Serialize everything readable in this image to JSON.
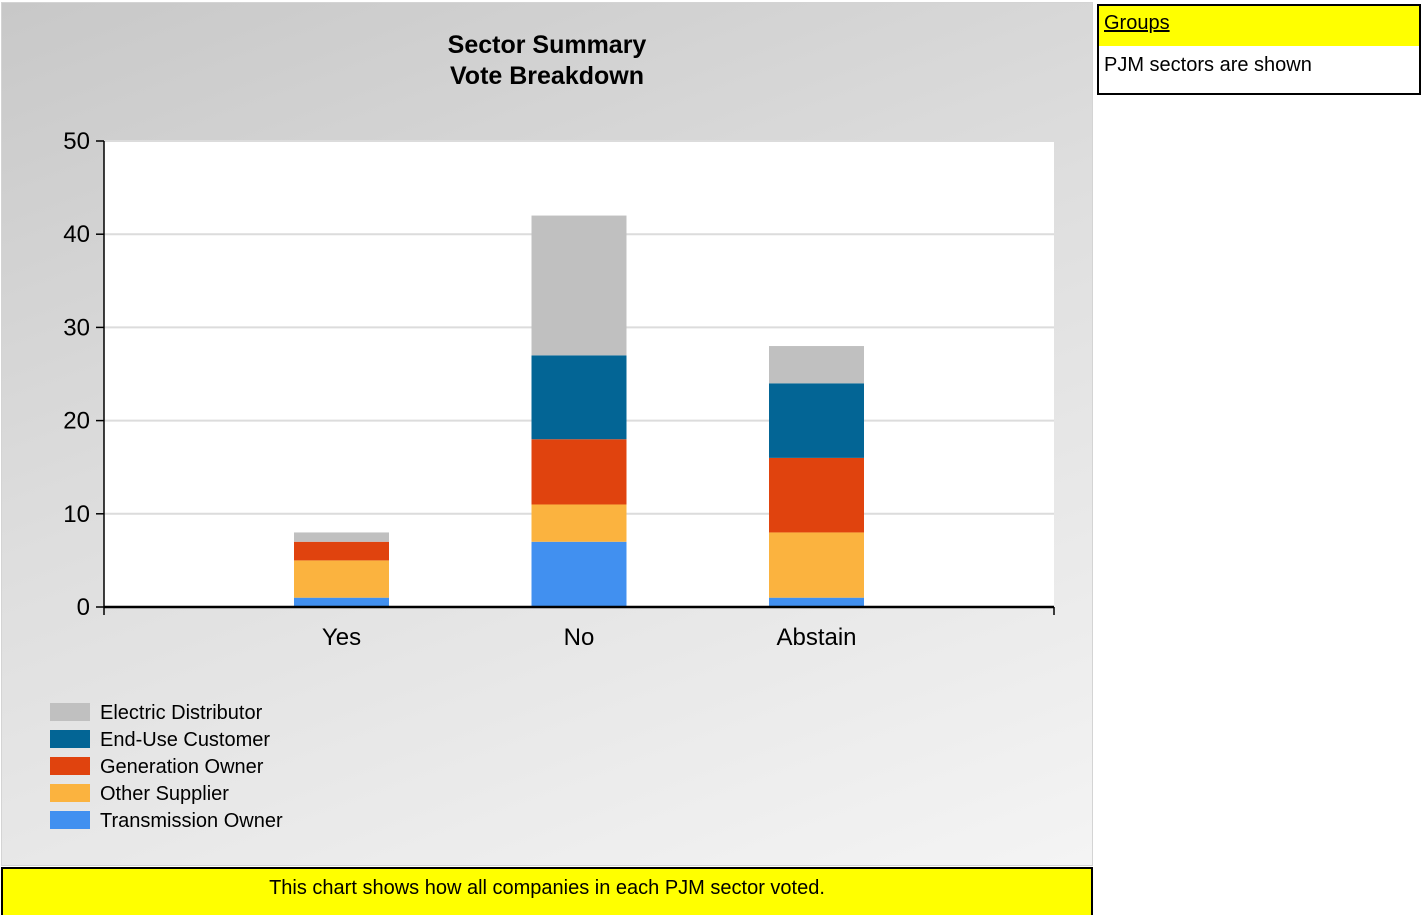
{
  "chart_data": {
    "type": "bar",
    "stacked": true,
    "title": [
      "Sector Summary",
      "Vote Breakdown"
    ],
    "categories": [
      "Yes",
      "No",
      "Abstain"
    ],
    "ylim": [
      0,
      50
    ],
    "yticks": [
      0,
      10,
      20,
      30,
      40,
      50
    ],
    "grid": true,
    "legend_position": "bottom-left",
    "series": [
      {
        "name": "Transmission Owner",
        "color": "#4190f0",
        "values": [
          1,
          7,
          1
        ]
      },
      {
        "name": "Other Supplier",
        "color": "#fbb33f",
        "values": [
          4,
          4,
          7
        ]
      },
      {
        "name": "Generation Owner",
        "color": "#e0430e",
        "values": [
          2,
          7,
          8
        ]
      },
      {
        "name": "End-Use Customer",
        "color": "#036595",
        "values": [
          0,
          9,
          8
        ]
      },
      {
        "name": "Electric Distributor",
        "color": "#c0c0c0",
        "values": [
          1,
          15,
          4
        ]
      }
    ],
    "legend_order": [
      "Electric Distributor",
      "End-Use Customer",
      "Generation Owner",
      "Other Supplier",
      "Transmission Owner"
    ]
  },
  "footer": {
    "note": "This chart shows how all companies in each PJM sector voted."
  },
  "groups": {
    "title": "Groups",
    "description": "PJM sectors are shown"
  }
}
